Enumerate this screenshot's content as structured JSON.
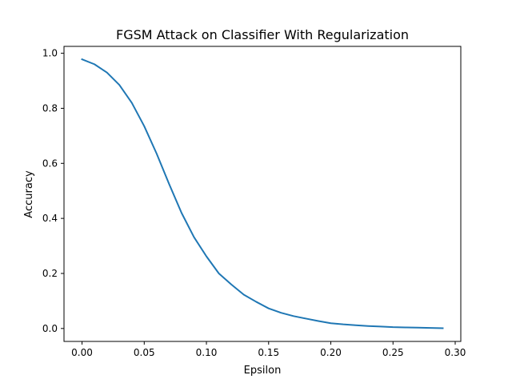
{
  "chart_data": {
    "type": "line",
    "title": "FGSM Attack on Classifier With Regularization",
    "xlabel": "Epsilon",
    "ylabel": "Accuracy",
    "xlim": [
      -0.0145,
      0.3045
    ],
    "ylim": [
      -0.047,
      1.025
    ],
    "xticks": [
      0.0,
      0.05,
      0.1,
      0.15,
      0.2,
      0.25,
      0.3
    ],
    "xtick_labels": [
      "0.00",
      "0.05",
      "0.10",
      "0.15",
      "0.20",
      "0.25",
      "0.30"
    ],
    "yticks": [
      0.0,
      0.2,
      0.4,
      0.6,
      0.8,
      1.0
    ],
    "ytick_labels": [
      "0.0",
      "0.2",
      "0.4",
      "0.6",
      "0.8",
      "1.0"
    ],
    "grid": false,
    "legend": "none",
    "series": [
      {
        "color": "#1f77b4",
        "x": [
          0.0,
          0.01,
          0.02,
          0.03,
          0.04,
          0.05,
          0.06,
          0.07,
          0.08,
          0.09,
          0.1,
          0.11,
          0.12,
          0.13,
          0.14,
          0.15,
          0.16,
          0.17,
          0.18,
          0.19,
          0.2,
          0.21,
          0.22,
          0.23,
          0.24,
          0.25,
          0.26,
          0.27,
          0.28,
          0.29
        ],
        "y": [
          0.978,
          0.96,
          0.93,
          0.885,
          0.82,
          0.735,
          0.635,
          0.525,
          0.42,
          0.332,
          0.262,
          0.2,
          0.16,
          0.123,
          0.097,
          0.073,
          0.057,
          0.045,
          0.036,
          0.027,
          0.019,
          0.015,
          0.012,
          0.009,
          0.007,
          0.005,
          0.004,
          0.003,
          0.002,
          0.001
        ]
      }
    ]
  }
}
